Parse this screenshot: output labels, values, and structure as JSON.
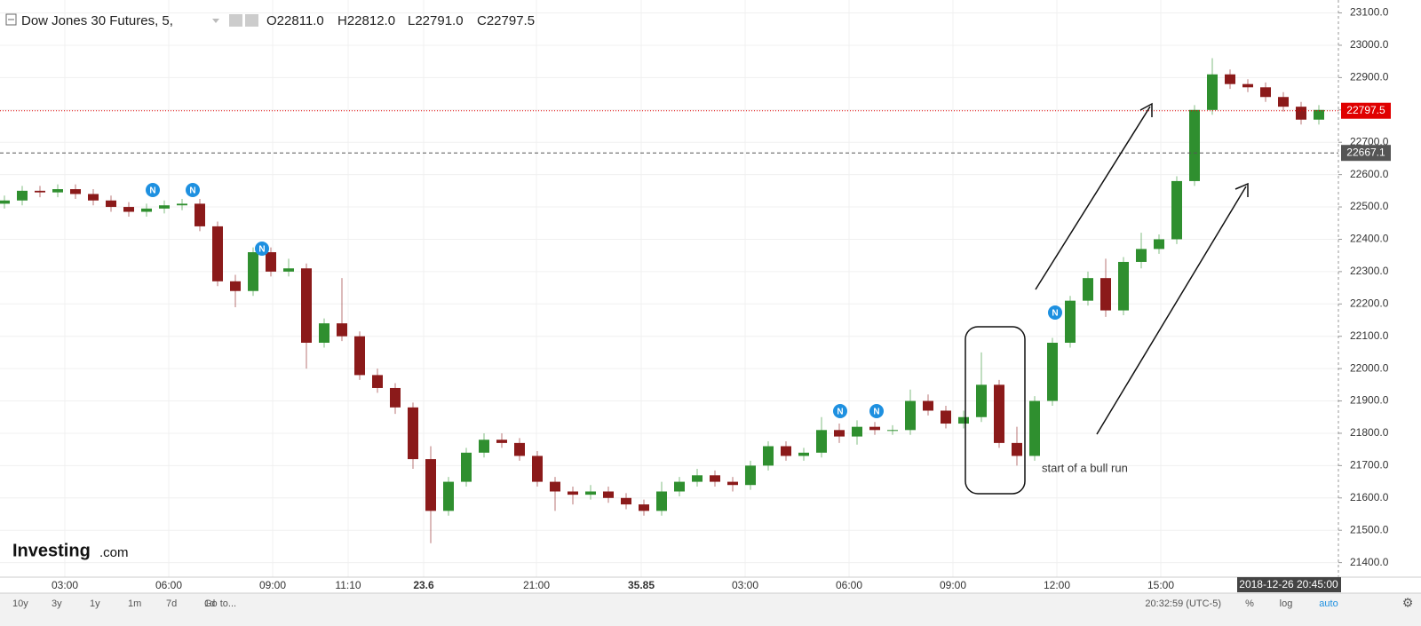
{
  "chart_data": {
    "type": "candlestick",
    "title": "Dow Jones 30 Futures, 5,",
    "ohlc_legend": [
      "O22811.0",
      "H22812.0",
      "L22791.0",
      "C22797.5"
    ],
    "up_color": "#2f8f2f",
    "down_color": "#8b1a1a",
    "open": [
      22510,
      22520,
      22550,
      22545,
      22555,
      22540,
      22520,
      22500,
      22485,
      22495,
      22505,
      22510,
      22440,
      22270,
      22240,
      22360,
      22300,
      22310,
      22080,
      22140,
      22100,
      21980,
      21940,
      21880,
      21720,
      21560,
      21650,
      21740,
      21780,
      21770,
      21730,
      21650,
      21620,
      21610,
      21620,
      21600,
      21580,
      21560,
      21620,
      21650,
      21670,
      21650,
      21640,
      21700,
      21760,
      21730,
      21740,
      21810,
      21790,
      21820,
      21810,
      21810,
      21900,
      21870,
      21830,
      21850,
      21950,
      21770,
      21730,
      21900,
      22080,
      22210,
      22280,
      22180,
      22330,
      22370,
      22400,
      22580,
      22800,
      22910,
      22880,
      22870,
      22840,
      22810,
      22770
    ],
    "high": [
      22535,
      22565,
      22565,
      22570,
      22570,
      22555,
      22535,
      22515,
      22510,
      22520,
      22525,
      22525,
      22455,
      22290,
      22375,
      22375,
      22340,
      22325,
      22155,
      22280,
      22115,
      22000,
      21955,
      21895,
      21760,
      21665,
      21755,
      21800,
      21800,
      21785,
      21745,
      21665,
      21635,
      21640,
      21635,
      21615,
      21595,
      21650,
      21665,
      21690,
      21685,
      21665,
      21715,
      21775,
      21775,
      21755,
      21850,
      21830,
      21840,
      21835,
      21825,
      21935,
      21920,
      21885,
      21870,
      22050,
      21965,
      21820,
      21915,
      22095,
      22225,
      22300,
      22340,
      22345,
      22420,
      22415,
      22595,
      22815,
      22960,
      22925,
      22895,
      22885,
      22855,
      22825,
      22815
    ],
    "low": [
      22495,
      22505,
      22530,
      22530,
      22525,
      22505,
      22485,
      22470,
      22470,
      22480,
      22490,
      22425,
      22255,
      22190,
      22225,
      22285,
      22285,
      22000,
      22065,
      22085,
      21965,
      21925,
      21860,
      21690,
      21460,
      21545,
      21635,
      21725,
      21755,
      21715,
      21635,
      21560,
      21580,
      21595,
      21585,
      21565,
      21545,
      21545,
      21605,
      21635,
      21635,
      21620,
      21625,
      21685,
      21715,
      21715,
      21725,
      21770,
      21765,
      21795,
      21795,
      21795,
      21855,
      21815,
      21815,
      21835,
      21755,
      21700,
      21715,
      21885,
      22065,
      22195,
      22160,
      22165,
      22310,
      22355,
      22385,
      22565,
      22785,
      22865,
      22855,
      22825,
      22795,
      22755,
      22755
    ],
    "close": [
      22520,
      22550,
      22545,
      22555,
      22540,
      22520,
      22500,
      22485,
      22495,
      22505,
      22510,
      22440,
      22270,
      22240,
      22360,
      22300,
      22310,
      22080,
      22140,
      22100,
      21980,
      21940,
      21880,
      21720,
      21560,
      21650,
      21740,
      21780,
      21770,
      21730,
      21650,
      21620,
      21610,
      21620,
      21600,
      21580,
      21560,
      21620,
      21650,
      21670,
      21650,
      21640,
      21700,
      21760,
      21730,
      21740,
      21810,
      21790,
      21820,
      21810,
      21810,
      21900,
      21870,
      21830,
      21850,
      21950,
      21770,
      21730,
      21900,
      22080,
      22210,
      22280,
      22180,
      22330,
      22370,
      22400,
      22580,
      22800,
      22910,
      22880,
      22870,
      22840,
      22810,
      22770,
      22800
    ],
    "xlim": [
      -0.25,
      75.1
    ],
    "xticks": [
      {
        "value": 3.4,
        "label": "03:00"
      },
      {
        "value": 9.25,
        "label": "06:00"
      },
      {
        "value": 15.1,
        "label": "09:00"
      },
      {
        "value": 19.35,
        "label": "11:10"
      },
      23.6,
      {
        "value": 29.95,
        "label": "21:00"
      },
      35.85,
      {
        "value": 41.7,
        "label": "03:00"
      },
      {
        "value": 47.55,
        "label": "06:00"
      },
      {
        "value": 53.4,
        "label": "09:00"
      },
      {
        "value": 59.25,
        "label": "12:00"
      },
      {
        "value": 65.1,
        "label": "15:00"
      }
    ],
    "ylim": [
      21355,
      23140
    ],
    "yticks": [
      {
        "value": 21400,
        "label": "21400.0"
      },
      {
        "value": 21500,
        "label": "21500.0"
      },
      {
        "value": 21600,
        "label": "21600.0"
      },
      {
        "value": 21700,
        "label": "21700.0"
      },
      {
        "value": 21800,
        "label": "21800.0"
      },
      {
        "value": 21900,
        "label": "21900.0"
      },
      {
        "value": 22000,
        "label": "22000.0"
      },
      {
        "value": 22100,
        "label": "22100.0"
      },
      {
        "value": 22200,
        "label": "22200.0"
      },
      {
        "value": 22300,
        "label": "22300.0"
      },
      {
        "value": 22400,
        "label": "22400.0"
      },
      {
        "value": 22500,
        "label": "22500.0"
      },
      {
        "value": 22600,
        "label": "22600.0"
      },
      {
        "value": 22700,
        "label": "22700.0"
      },
      {
        "value": 22800,
        "label": "22800.0"
      },
      {
        "value": 22900,
        "label": "22900.0"
      },
      {
        "value": 23000,
        "label": "23000.0"
      },
      {
        "value": 23100,
        "label": "23100.0"
      }
    ],
    "grid": true,
    "price_lines": [
      {
        "value": 22797.5,
        "color": "#e00000"
      },
      {
        "value": 22667.1,
        "color": "#555555"
      }
    ],
    "news_marker": "N",
    "cursor_time": "2018-12-26 20:45:00",
    "annotation": "start of a bull run",
    "logo": [
      "Investing",
      ".com"
    ],
    "toolbar": {
      "ranges": [
        "10y",
        "3y",
        "1y",
        "1m",
        "7d",
        "1d",
        "Go to..."
      ],
      "clock": "20:32:59 (UTC-5)",
      "options": [
        "%",
        "log",
        "auto"
      ]
    }
  }
}
